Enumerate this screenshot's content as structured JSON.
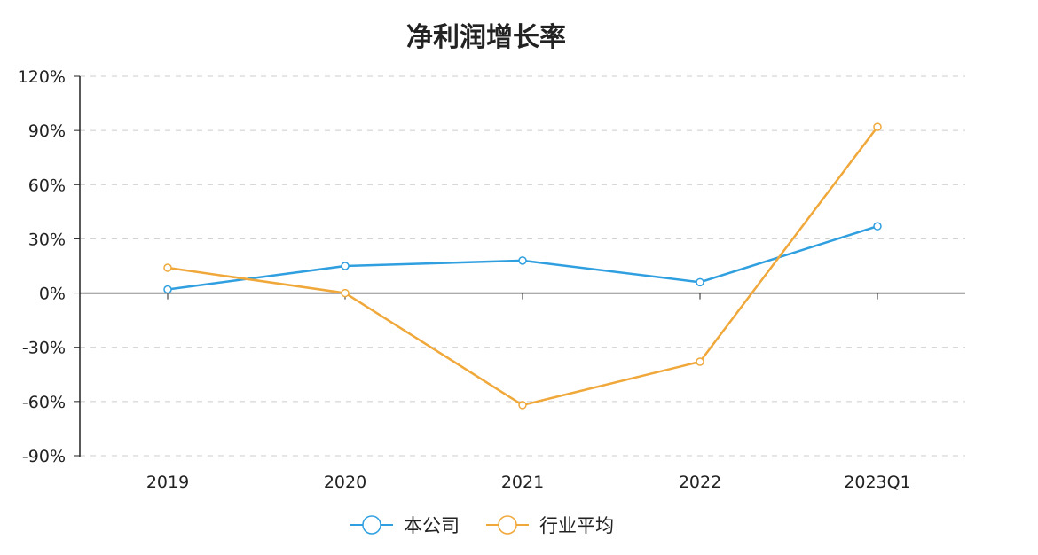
{
  "chart_data": {
    "type": "line",
    "title": "净利润增长率",
    "categories": [
      "2019",
      "2020",
      "2021",
      "2022",
      "2023Q1"
    ],
    "ylim": [
      -90,
      120
    ],
    "yticks": [
      "-90%",
      "-60%",
      "-30%",
      "0%",
      "30%",
      "60%",
      "90%",
      "120%"
    ],
    "ytick_values": [
      -90,
      -60,
      -30,
      0,
      30,
      60,
      90,
      120
    ],
    "grid": true,
    "legend_position": "bottom",
    "series": [
      {
        "name": "本公司",
        "color": "#2f9fe0",
        "values": [
          2,
          15,
          18,
          6,
          37
        ]
      },
      {
        "name": "行业平均",
        "color": "#f0a83a",
        "values": [
          14,
          0,
          -62,
          -38,
          92
        ]
      }
    ]
  }
}
